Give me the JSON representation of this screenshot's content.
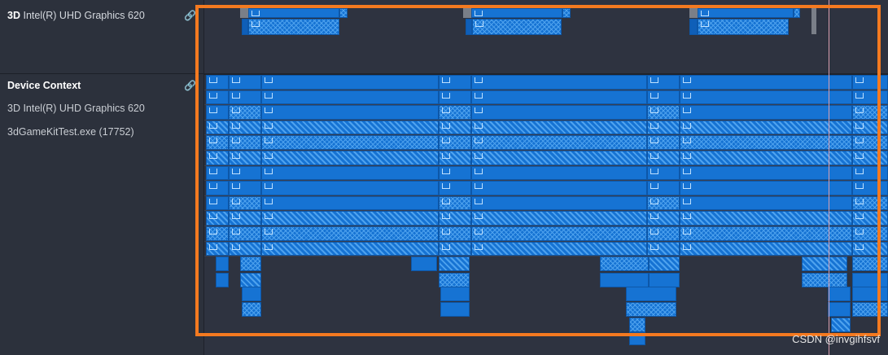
{
  "sidebar": {
    "gpu_header": {
      "prefix": "3D",
      "label": "Intel(R) UHD Graphics 620"
    },
    "device_context": {
      "title": "Device Context",
      "items": [
        "3D Intel(R) UHD Graphics 620",
        "3dGameKitTest.exe (17752)"
      ]
    }
  },
  "watermark": "CSDN @invgihfsvf",
  "colors": {
    "accent": "#1673d3",
    "highlight": "#f47a20",
    "background": "#2e3340"
  }
}
